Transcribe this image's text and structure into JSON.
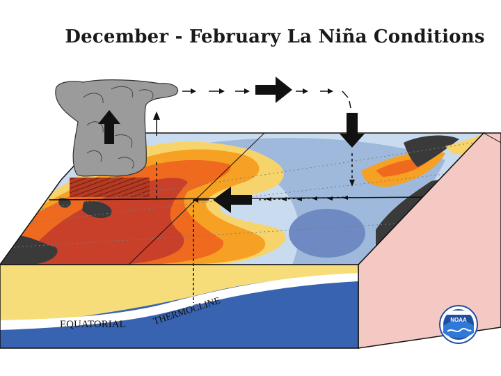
{
  "title": "December - February La Niña Conditions",
  "labels": {
    "equatorial": "EQUATORIAL",
    "thermocline": "THERMOCLINE"
  },
  "logo": {
    "text": "NOAA",
    "icon": "noaa-logo-icon"
  },
  "colors": {
    "warm_red": "#c8402a",
    "warm_orange": "#ef6a1f",
    "warm_amber": "#f6a123",
    "warm_yellow": "#f7d46b",
    "cool_light": "#c9dcef",
    "cool_mid": "#9fb9dc",
    "cool_deep": "#6f89c2",
    "land": "#3a3a3a",
    "ocean_deep": "#3763b0",
    "ocean_warm_layer": "#f6dd7a",
    "side_face": "#f4c9c3",
    "cloud": "#9b9b9b"
  }
}
